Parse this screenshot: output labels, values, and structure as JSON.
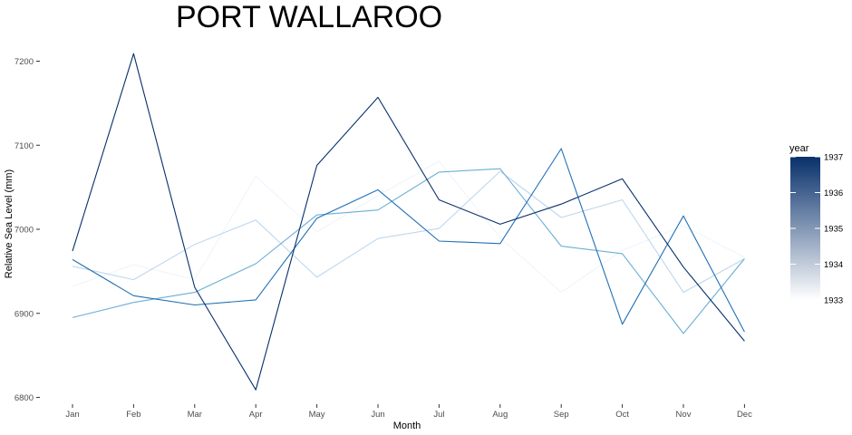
{
  "chart_data": {
    "type": "line",
    "title": "PORT WALLAROO",
    "xlabel": "Month",
    "ylabel": "Relative Sea Level (mm)",
    "categories": [
      "Jan",
      "Feb",
      "Mar",
      "Apr",
      "May",
      "Jun",
      "Jul",
      "Aug",
      "Sep",
      "Oct",
      "Nov",
      "Dec"
    ],
    "yticks": [
      6800,
      6900,
      7000,
      7100,
      7200
    ],
    "ylim": [
      6790,
      7215
    ],
    "grid": false,
    "legend": {
      "title": "year",
      "placement": "right",
      "type": "colorbar",
      "labels": [
        "1937",
        "1936",
        "1935",
        "1934",
        "1933"
      ],
      "color_low": "#ffffff",
      "color_high": "#08306b"
    },
    "series": [
      {
        "year": 1933,
        "color": "#eef5fc",
        "values": [
          6932,
          6958,
          6940,
          7063,
          6997,
          7040,
          7081,
          6990,
          6925,
          6975,
          7004,
          6967
        ]
      },
      {
        "year": 1934,
        "color": "#bdd7ee",
        "values": [
          6956,
          6940,
          6982,
          7011,
          6943,
          6989,
          7001,
          7069,
          7014,
          7035,
          6925,
          6965
        ]
      },
      {
        "year": 1935,
        "color": "#6aaed6",
        "values": [
          6895,
          6913,
          6925,
          6959,
          7017,
          7023,
          7068,
          7072,
          6980,
          6971,
          6876,
          6965
        ]
      },
      {
        "year": 1936,
        "color": "#2171b5",
        "values": [
          6964,
          6921,
          6910,
          6916,
          7013,
          7047,
          6986,
          6983,
          7096,
          6887,
          7016,
          6878
        ]
      },
      {
        "year": 1937,
        "color": "#08306b",
        "values": [
          6974,
          7209,
          6931,
          6809,
          7076,
          7157,
          7035,
          7006,
          7030,
          7060,
          6955,
          6867
        ]
      }
    ]
  }
}
